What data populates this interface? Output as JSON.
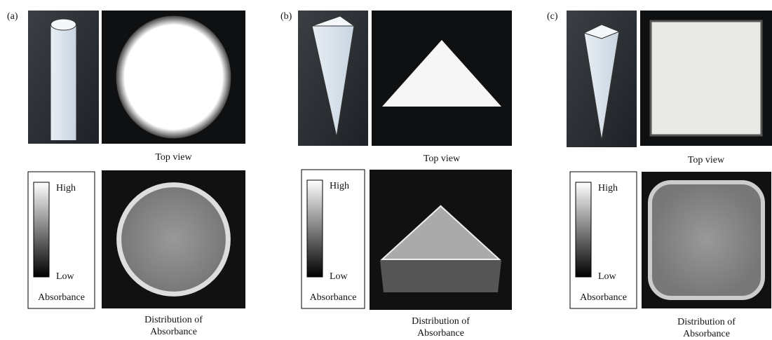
{
  "panels": [
    {
      "label": "(a)",
      "top_view": "Top view",
      "legend": {
        "high": "High",
        "low": "Low",
        "title": "Absorbance"
      },
      "caption": [
        "Distribution of",
        "Absorbance"
      ]
    },
    {
      "label": "(b)",
      "top_view": "Top view",
      "legend": {
        "high": "High",
        "low": "Low",
        "title": "Absorbance"
      },
      "caption": [
        "Distribution of",
        "Absorbance"
      ]
    },
    {
      "label": "(c)",
      "top_view": "Top view",
      "legend": {
        "high": "High",
        "low": "Low",
        "title": "Absorbance"
      },
      "caption": [
        "Distribution of",
        "Absorbance"
      ]
    }
  ]
}
